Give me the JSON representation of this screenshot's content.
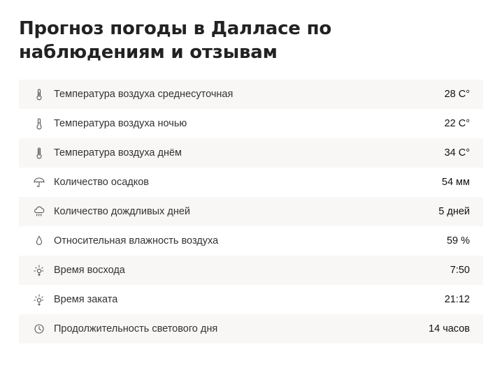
{
  "page": {
    "title": "Прогноз погоды в Далласе по наблюдениям и отзывам"
  },
  "stats": [
    {
      "icon": "thermometer-icon",
      "label": "Температура воздуха среднесуточная",
      "value": "28 C°"
    },
    {
      "icon": "thermometer-low-icon",
      "label": "Температура воздуха ночью",
      "value": "22 C°"
    },
    {
      "icon": "thermometer-high-icon",
      "label": "Температура воздуха днём",
      "value": "34 C°"
    },
    {
      "icon": "umbrella-icon",
      "label": "Количество осадков",
      "value": "54 мм"
    },
    {
      "icon": "rain-cloud-icon",
      "label": "Количество дождливых дней",
      "value": "5 дней"
    },
    {
      "icon": "droplet-icon",
      "label": "Относительная влажность воздуха",
      "value": "59 %"
    },
    {
      "icon": "sunrise-icon",
      "label": "Время восхода",
      "value": "7:50"
    },
    {
      "icon": "sunset-icon",
      "label": "Время заката",
      "value": "21:12"
    },
    {
      "icon": "clock-icon",
      "label": "Продолжительность светового дня",
      "value": "14 часов"
    }
  ],
  "colors": {
    "row_alt_background": "#f8f7f5",
    "text": "#333333",
    "icon_stroke": "#555555"
  }
}
